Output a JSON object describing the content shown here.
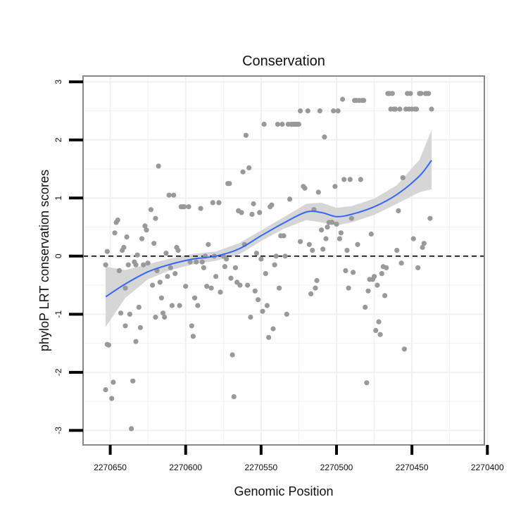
{
  "chart_data": {
    "type": "scatter",
    "title": "Conservation",
    "xlabel": "Genomic Position",
    "ylabel": "phyloP LRT conservation scores",
    "x_reversed": true,
    "xlim": [
      2270402,
      2270668
    ],
    "ylim": [
      -3.25,
      3.1
    ],
    "x_ticks": [
      2270650,
      2270600,
      2270550,
      2270500,
      2270450,
      2270400
    ],
    "x_tick_labels": [
      "2270650",
      "2270600",
      "2270550",
      "2270500",
      "2270450",
      "2270400"
    ],
    "y_ticks": [
      -3,
      -2,
      -1,
      0,
      1,
      2,
      3
    ],
    "y_tick_labels": [
      "-3",
      "-2",
      "-1",
      "0",
      "1",
      "2",
      "3"
    ],
    "grid": true,
    "colors": {
      "points": "#999999",
      "smooth_line": "#3366ff",
      "confidence_band": "#d6d6d6",
      "reference_line": "#000000",
      "frame": "#888888",
      "grid": "#f0f0f0"
    },
    "reference_line": {
      "y": 0,
      "style": "dashed"
    },
    "series": [
      {
        "name": "scores",
        "points": [
          [
            2270653,
            -2.3
          ],
          [
            2270652,
            -1.52
          ],
          [
            2270651,
            -1.53
          ],
          [
            2270649,
            -2.45
          ],
          [
            2270648,
            -2.17
          ],
          [
            2270652,
            0.08
          ],
          [
            2270653,
            -0.15
          ],
          [
            2270647,
            0.4
          ],
          [
            2270646,
            0.58
          ],
          [
            2270645,
            0.62
          ],
          [
            2270644,
            -0.25
          ],
          [
            2270643,
            -0.98
          ],
          [
            2270642,
            0.1
          ],
          [
            2270641,
            0.15
          ],
          [
            2270640,
            -1.2
          ],
          [
            2270640,
            -0.55
          ],
          [
            2270636,
            -2.97
          ],
          [
            2270639,
            0.33
          ],
          [
            2270638,
            -0.15
          ],
          [
            2270637,
            -1.0
          ],
          [
            2270635,
            -2.15
          ],
          [
            2270634,
            -0.1
          ],
          [
            2270633,
            -1.47
          ],
          [
            2270633,
            -0.15
          ],
          [
            2270632,
            0.02
          ],
          [
            2270631,
            -0.88
          ],
          [
            2270630,
            -1.23
          ],
          [
            2270629,
            0.3
          ],
          [
            2270628,
            -0.15
          ],
          [
            2270627,
            0.52
          ],
          [
            2270626,
            0.45
          ],
          [
            2270625,
            -0.12
          ],
          [
            2270623,
            0.8
          ],
          [
            2270622,
            -0.5
          ],
          [
            2270621,
            0.22
          ],
          [
            2270620,
            0.65
          ],
          [
            2270620,
            -1.05
          ],
          [
            2270619,
            -0.25
          ],
          [
            2270618,
            1.55
          ],
          [
            2270617,
            -0.45
          ],
          [
            2270616,
            -0.72
          ],
          [
            2270615,
            -0.98
          ],
          [
            2270614,
            -1.05
          ],
          [
            2270613,
            0.05
          ],
          [
            2270612,
            -0.35
          ],
          [
            2270611,
            1.05
          ],
          [
            2270610,
            -0.2
          ],
          [
            2270609,
            -0.85
          ],
          [
            2270608,
            1.05
          ],
          [
            2270607,
            -0.3
          ],
          [
            2270606,
            0.15
          ],
          [
            2270605,
            0.1
          ],
          [
            2270604,
            -0.85
          ],
          [
            2270603,
            0.85
          ],
          [
            2270602,
            0.85
          ],
          [
            2270601,
            0.85
          ],
          [
            2270600,
            -0.52
          ],
          [
            2270598,
            0.85
          ],
          [
            2270597,
            -0.1
          ],
          [
            2270596,
            -1.2
          ],
          [
            2270595,
            -1.38
          ],
          [
            2270594,
            -0.72
          ],
          [
            2270593,
            -0.1
          ],
          [
            2270592,
            -0.85
          ],
          [
            2270590,
            0.82
          ],
          [
            2270589,
            -0.1
          ],
          [
            2270588,
            -0.2
          ],
          [
            2270587,
            0.0
          ],
          [
            2270586,
            -0.52
          ],
          [
            2270585,
            0.2
          ],
          [
            2270583,
            -0.55
          ],
          [
            2270582,
            0.92
          ],
          [
            2270581,
            0.0
          ],
          [
            2270580,
            -0.35
          ],
          [
            2270578,
            0.92
          ],
          [
            2270577,
            -0.62
          ],
          [
            2270575,
            0.0
          ],
          [
            2270574,
            -0.18
          ],
          [
            2270573,
            -0.05
          ],
          [
            2270572,
            1.25
          ],
          [
            2270571,
            1.25
          ],
          [
            2270570,
            -0.38
          ],
          [
            2270569,
            -1.7
          ],
          [
            2270568,
            -2.42
          ],
          [
            2270567,
            -0.2
          ],
          [
            2270566,
            -0.45
          ],
          [
            2270565,
            0.78
          ],
          [
            2270564,
            -0.5
          ],
          [
            2270563,
            0.75
          ],
          [
            2270562,
            1.45
          ],
          [
            2270561,
            0.2
          ],
          [
            2270560,
            2.08
          ],
          [
            2270559,
            -0.5
          ],
          [
            2270558,
            1.52
          ],
          [
            2270557,
            -1.05
          ],
          [
            2270556,
            0.72
          ],
          [
            2270555,
            0.9
          ],
          [
            2270554,
            -0.6
          ],
          [
            2270553,
            0.05
          ],
          [
            2270552,
            -0.75
          ],
          [
            2270551,
            0.75
          ],
          [
            2270550,
            -0.05
          ],
          [
            2270549,
            -0.95
          ],
          [
            2270548,
            2.27
          ],
          [
            2270547,
            -0.3
          ],
          [
            2270546,
            -0.85
          ],
          [
            2270545,
            -1.4
          ],
          [
            2270544,
            0.85
          ],
          [
            2270543,
            0.88
          ],
          [
            2270542,
            -1.25
          ],
          [
            2270541,
            -0.15
          ],
          [
            2270540,
            0.0
          ],
          [
            2270539,
            2.27
          ],
          [
            2270538,
            -0.55
          ],
          [
            2270537,
            0.35
          ],
          [
            2270536,
            2.27
          ],
          [
            2270535,
            0.35
          ],
          [
            2270534,
            0.0
          ],
          [
            2270533,
            -1.0
          ],
          [
            2270532,
            2.27
          ],
          [
            2270531,
            0.98
          ],
          [
            2270530,
            2.27
          ],
          [
            2270529,
            2.27
          ],
          [
            2270528,
            2.27
          ],
          [
            2270527,
            2.27
          ],
          [
            2270526,
            2.27
          ],
          [
            2270525,
            2.27
          ],
          [
            2270524,
            0.25
          ],
          [
            2270524,
            2.5
          ],
          [
            2270522,
            1.2
          ],
          [
            2270521,
            1.17
          ],
          [
            2270519,
            2.5
          ],
          [
            2270518,
            0.2
          ],
          [
            2270517,
            -0.65
          ],
          [
            2270516,
            0.1
          ],
          [
            2270515,
            0.8
          ],
          [
            2270514,
            -0.55
          ],
          [
            2270513,
            -0.42
          ],
          [
            2270512,
            1.1
          ],
          [
            2270511,
            2.5
          ],
          [
            2270510,
            0.45
          ],
          [
            2270509,
            0.12
          ],
          [
            2270508,
            2.05
          ],
          [
            2270507,
            0.3
          ],
          [
            2270506,
            0.5
          ],
          [
            2270505,
            0.58
          ],
          [
            2270503,
            0.58
          ],
          [
            2270502,
            2.5
          ],
          [
            2270501,
            1.2
          ],
          [
            2270500,
            0.55
          ],
          [
            2270499,
            2.5
          ],
          [
            2270498,
            0.3
          ],
          [
            2270497,
            0.4
          ],
          [
            2270496,
            2.7
          ],
          [
            2270495,
            1.32
          ],
          [
            2270494,
            -0.25
          ],
          [
            2270493,
            0.1
          ],
          [
            2270492,
            -0.55
          ],
          [
            2270491,
            1.32
          ],
          [
            2270490,
            0.65
          ],
          [
            2270489,
            -0.28
          ],
          [
            2270488,
            2.68
          ],
          [
            2270487,
            2.68
          ],
          [
            2270486,
            0.2
          ],
          [
            2270485,
            2.68
          ],
          [
            2270484,
            1.32
          ],
          [
            2270483,
            2.68
          ],
          [
            2270482,
            2.68
          ],
          [
            2270481,
            -0.88
          ],
          [
            2270480,
            -2.18
          ],
          [
            2270479,
            -0.6
          ],
          [
            2270478,
            -0.4
          ],
          [
            2270477,
            0.38
          ],
          [
            2270476,
            -0.4
          ],
          [
            2270475,
            -0.35
          ],
          [
            2270474,
            -1.28
          ],
          [
            2270473,
            -0.5
          ],
          [
            2270472,
            -1.13
          ],
          [
            2270471,
            -1.35
          ],
          [
            2270470,
            -0.3
          ],
          [
            2270469,
            -0.18
          ],
          [
            2270468,
            -0.68
          ],
          [
            2270467,
            -0.2
          ],
          [
            2270466,
            2.8
          ],
          [
            2270465,
            2.8
          ],
          [
            2270464,
            2.53
          ],
          [
            2270463,
            2.8
          ],
          [
            2270462,
            2.53
          ],
          [
            2270461,
            2.53
          ],
          [
            2270460,
            0.1
          ],
          [
            2270459,
            0.78
          ],
          [
            2270458,
            2.53
          ],
          [
            2270457,
            -0.12
          ],
          [
            2270456,
            1.35
          ],
          [
            2270455,
            -1.6
          ],
          [
            2270454,
            2.53
          ],
          [
            2270453,
            2.8
          ],
          [
            2270452,
            2.53
          ],
          [
            2270451,
            2.8
          ],
          [
            2270450,
            2.53
          ],
          [
            2270449,
            0.3
          ],
          [
            2270448,
            2.53
          ],
          [
            2270447,
            2.53
          ],
          [
            2270446,
            -0.2
          ],
          [
            2270445,
            2.8
          ],
          [
            2270444,
            2.8
          ],
          [
            2270443,
            0.15
          ],
          [
            2270442,
            0.22
          ],
          [
            2270441,
            2.8
          ],
          [
            2270440,
            2.8
          ],
          [
            2270439,
            2.8
          ],
          [
            2270438,
            0.65
          ],
          [
            2270437,
            2.53
          ]
        ]
      }
    ],
    "smooth": {
      "name": "loess fit",
      "x": [
        2270653,
        2270640,
        2270625,
        2270610,
        2270595,
        2270580,
        2270565,
        2270550,
        2270535,
        2270520,
        2270510,
        2270500,
        2270490,
        2270475,
        2270460,
        2270445,
        2270437
      ],
      "y": [
        -0.7,
        -0.48,
        -0.27,
        -0.14,
        -0.05,
        0.0,
        0.12,
        0.35,
        0.57,
        0.76,
        0.75,
        0.68,
        0.72,
        0.85,
        1.06,
        1.38,
        1.65
      ],
      "lower": [
        -1.22,
        -0.72,
        -0.4,
        -0.24,
        -0.14,
        -0.08,
        0.02,
        0.26,
        0.47,
        0.62,
        0.58,
        0.53,
        0.58,
        0.71,
        0.9,
        1.1,
        1.15
      ],
      "upper": [
        -0.18,
        -0.24,
        -0.14,
        -0.04,
        0.04,
        0.08,
        0.22,
        0.44,
        0.67,
        0.9,
        0.92,
        0.83,
        0.86,
        0.99,
        1.22,
        1.66,
        2.17
      ]
    }
  }
}
